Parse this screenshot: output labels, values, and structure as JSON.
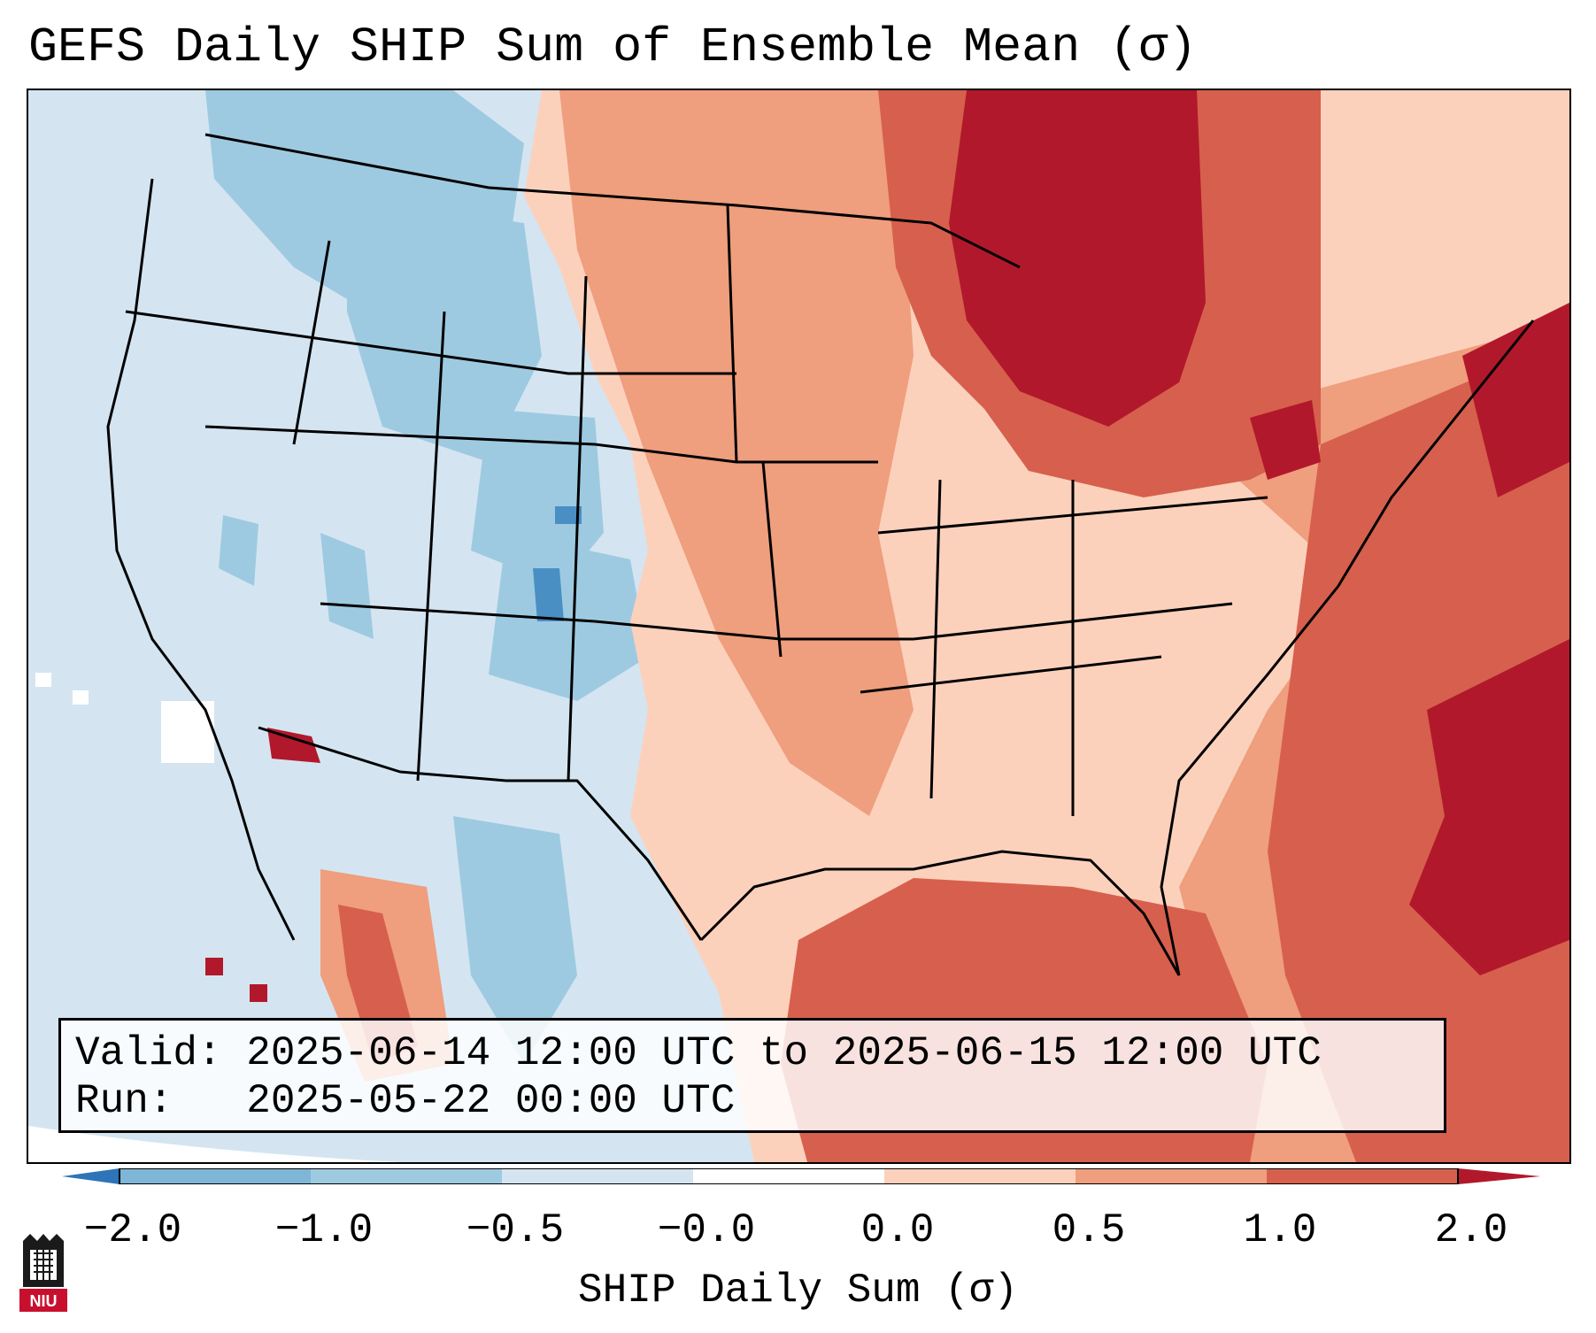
{
  "title": "GEFS Daily SHIP Sum of Ensemble Mean (σ)",
  "info": {
    "valid_line": "Valid: 2025-06-14 12:00 UTC to 2025-06-15 12:00 UTC",
    "run_line": "Run:   2025-05-22 00:00 UTC"
  },
  "colorbar": {
    "label": "SHIP Daily Sum (σ)",
    "ticks": [
      "−2.0",
      "−1.0",
      "−0.5",
      "−0.0",
      "0.0",
      "0.5",
      "1.0",
      "2.0"
    ],
    "colors": [
      "#2d74b8",
      "#7fb6d8",
      "#9ecae1",
      "#d4e5f1",
      "#ffffff",
      "#fcd1bc",
      "#ef9e7e",
      "#d6604d",
      "#b2182b"
    ]
  },
  "logo": {
    "text": "NIU"
  },
  "icons": [
    "niu-logo-icon"
  ]
}
